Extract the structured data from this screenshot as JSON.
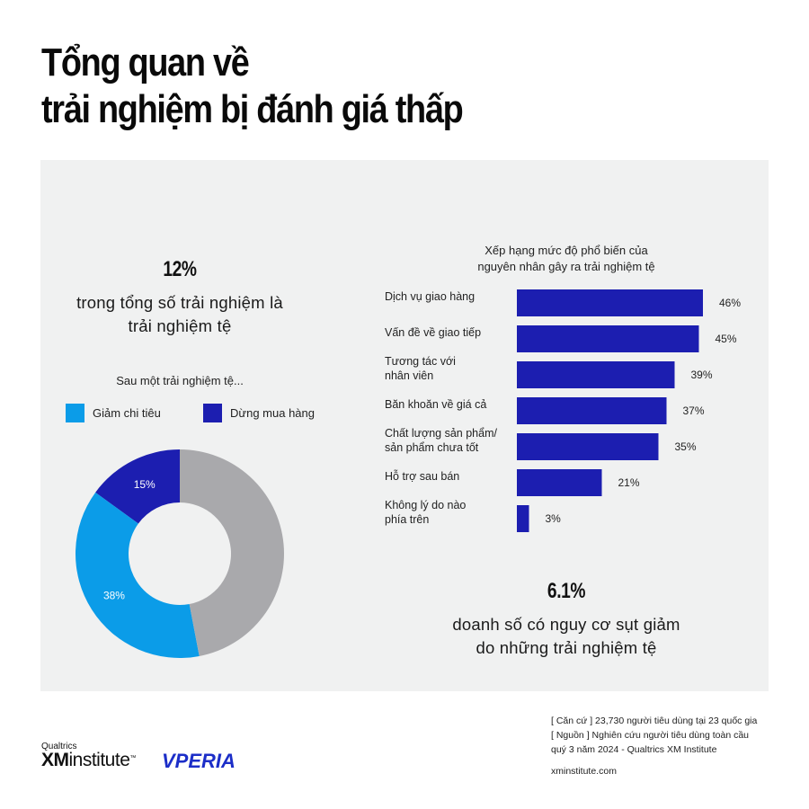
{
  "title": {
    "line1": "Tổng quan về",
    "line2": "trải nghiệm bị đánh giá thấp"
  },
  "stat_left": {
    "value": "12%",
    "desc_line1": "trong tổng số trải nghiệm là",
    "desc_line2": "trải nghiệm tệ"
  },
  "stat_right": {
    "value": "6.1%",
    "desc_line1": "doanh số có nguy cơ sụt giảm",
    "desc_line2": "do những trải nghiệm tệ"
  },
  "colors": {
    "light_blue": "#0b9ce8",
    "dark_blue": "#1c1eb0",
    "gray": "#a9a9ac",
    "panel": "#f0f1f1"
  },
  "chart_data": [
    {
      "type": "pie",
      "title": "Sau một trải nghiệm tệ...",
      "legend": [
        "Giảm chi tiêu",
        "Dừng mua hàng"
      ],
      "slices": [
        {
          "label": "Dừng mua hàng",
          "value": 15,
          "display": "15%",
          "color": "#1c1eb0"
        },
        {
          "label": "Giảm chi tiêu",
          "value": 38,
          "display": "38%",
          "color": "#0b9ce8"
        },
        {
          "label": "",
          "value": 47,
          "display": "",
          "color": "#a9a9ac"
        }
      ]
    },
    {
      "type": "bar",
      "orientation": "horizontal",
      "title_line1": "Xếp hạng mức độ phổ biến của",
      "title_line2": "nguyên nhân gây ra trải nghiệm tệ",
      "categories": [
        [
          "Dịch vụ giao hàng"
        ],
        [
          "Vấn đề về giao tiếp"
        ],
        [
          "Tương tác với",
          "nhân viên"
        ],
        [
          "Băn khoăn về giá cả"
        ],
        [
          "Chất lượng sản phẩm/",
          "sản phẩm chưa tốt"
        ],
        [
          "Hỗ trợ sau bán"
        ],
        [
          "Không lý do nào",
          "phía trên"
        ]
      ],
      "values": [
        46,
        45,
        39,
        37,
        35,
        21,
        3
      ],
      "labels": [
        "46%",
        "45%",
        "39%",
        "37%",
        "35%",
        "21%",
        "3%"
      ],
      "xlim": [
        0,
        46
      ],
      "color": "#1c1eb0"
    }
  ],
  "footer": {
    "basis": "[ Căn cứ ] 23,730 người tiêu dùng tại 23 quốc gia",
    "source_line1": "[ Nguồn ] Nghiên cứu người tiêu dùng toàn cầu",
    "source_line2": "quý 3 năm 2024 - Qualtrics XM Institute",
    "url": "xminstitute.com",
    "logo_qualtrics": "Qualtrics",
    "logo_xm": "XM",
    "logo_institute": "institute",
    "logo_tm": "™",
    "logo_vperia": "VPERIA"
  }
}
